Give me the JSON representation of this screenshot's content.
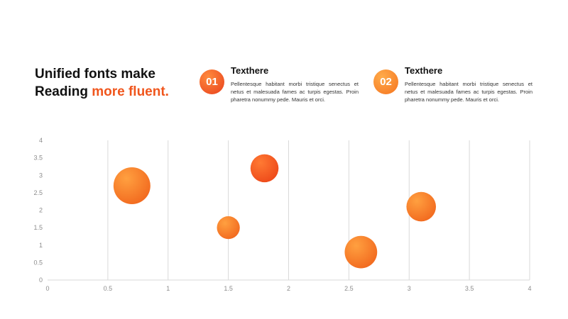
{
  "headline": {
    "line1": "Unified fonts make",
    "line2_prefix": "Reading ",
    "line2_accent": "more fluent."
  },
  "features": [
    {
      "number": "01",
      "title": "Texthere",
      "body": "Pellentesque habitant morbi tristique senectus et netus et malesuada fames ac turpis egestas. Proin pharetra nonummy pede. Mauris et orci."
    },
    {
      "number": "02",
      "title": "Texthere",
      "body": "Pellentesque habitant morbi tristique senectus et netus et malesuada fames ac turpis egestas. Proin pharetra nonummy pede. Mauris et orci."
    }
  ],
  "colors": {
    "accent": "#f0561d",
    "bubble_light": "#ffa040",
    "bubble_dark": "#f26a1f",
    "bubble_red": "#ee4a1a",
    "grid": "#d9d9d9"
  },
  "chart_data": {
    "type": "scatter",
    "title": "",
    "xlabel": "",
    "ylabel": "",
    "xlim": [
      0,
      4
    ],
    "ylim": [
      0,
      4
    ],
    "x_ticks": [
      "0",
      "0.5",
      "1",
      "1.5",
      "2",
      "2.5",
      "3",
      "3.5",
      "4"
    ],
    "y_ticks": [
      "0",
      "0.5",
      "1",
      "1.5",
      "2",
      "2.5",
      "3",
      "3.5",
      "4"
    ],
    "grid": "vertical",
    "legend": "none",
    "points": [
      {
        "x": 0.7,
        "y": 2.7,
        "size": 1.0
      },
      {
        "x": 1.5,
        "y": 1.5,
        "size": 0.62
      },
      {
        "x": 1.8,
        "y": 3.2,
        "size": 0.76
      },
      {
        "x": 2.6,
        "y": 0.8,
        "size": 0.88
      },
      {
        "x": 3.1,
        "y": 2.1,
        "size": 0.8
      }
    ]
  }
}
